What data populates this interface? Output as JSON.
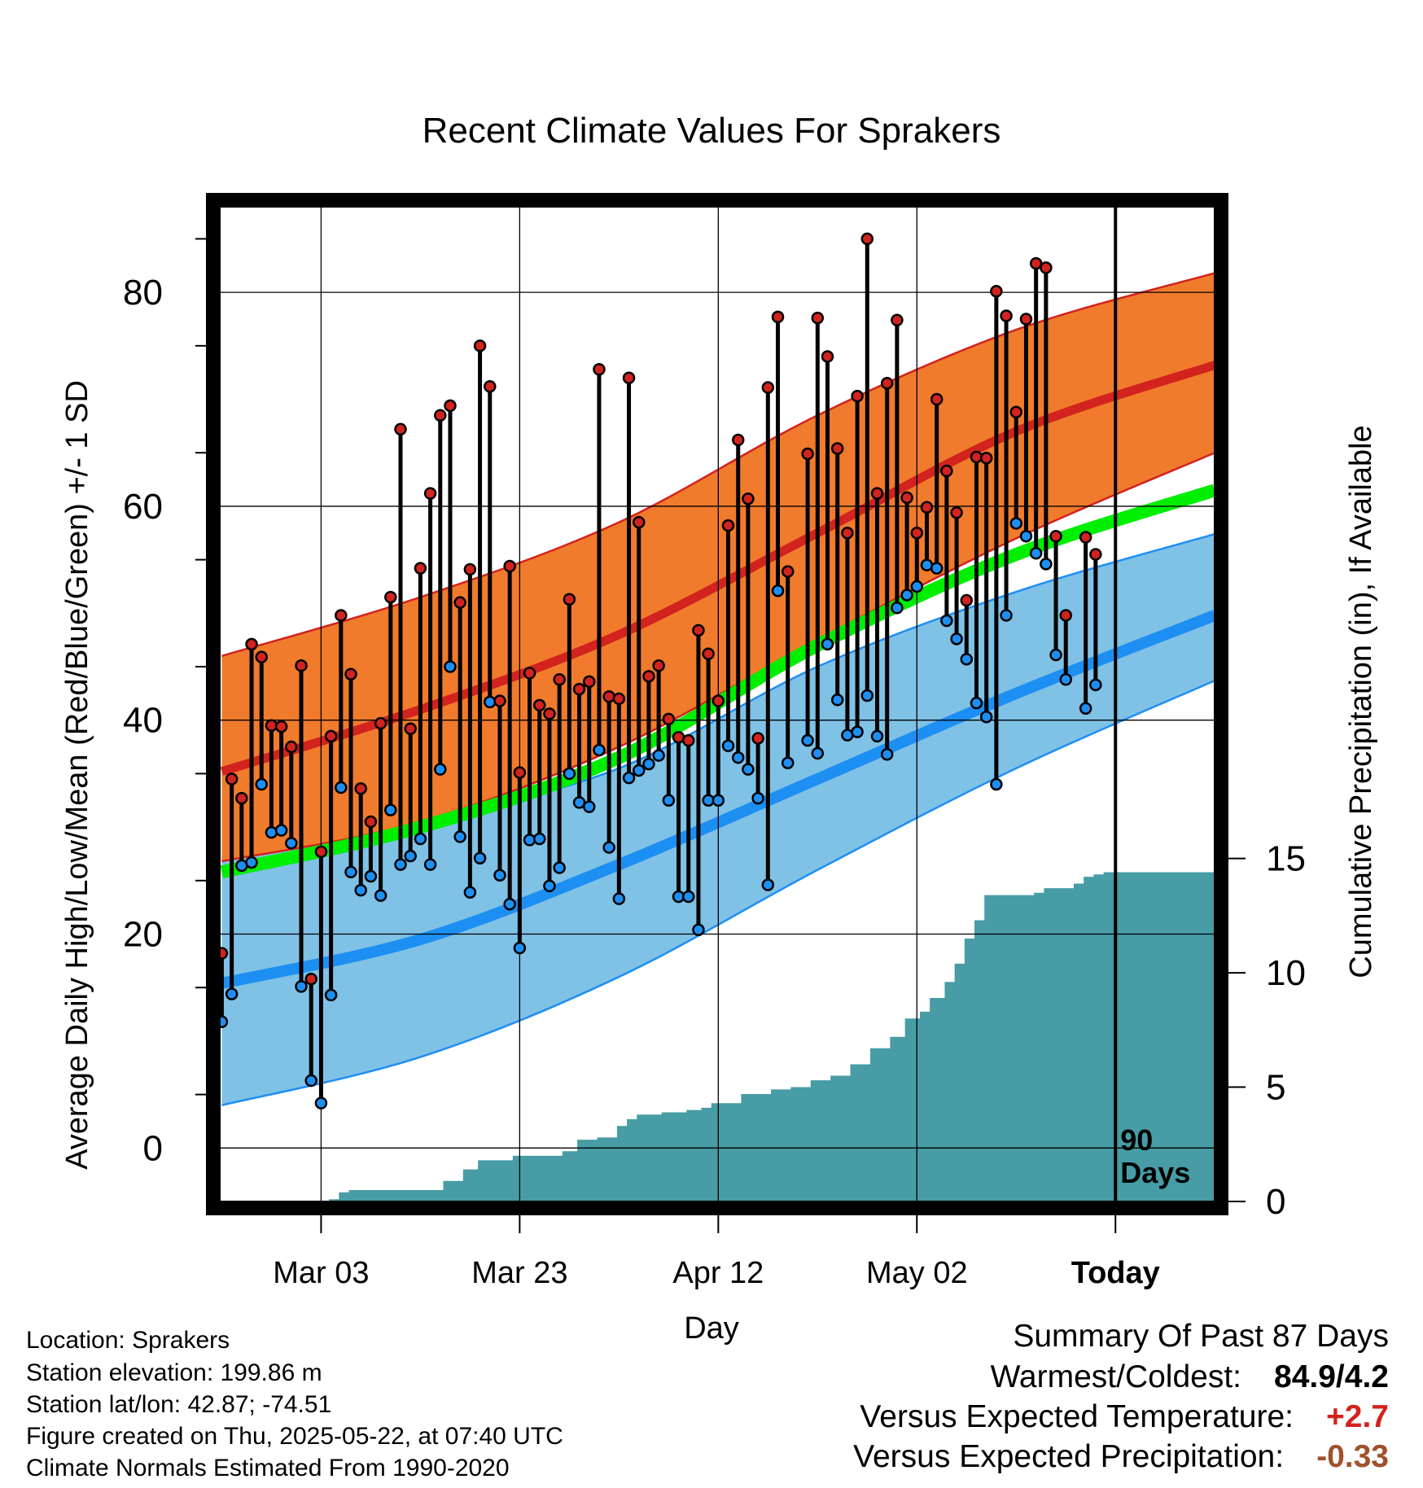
{
  "colors": {
    "high_band": "#f07b2c",
    "high_mean": "#d2231e",
    "low_band": "#80c1e6",
    "low_mean": "#1e8ff2",
    "normal_mean": "#00ee00",
    "precip": "#479ca5",
    "high_dot": "#d2231e",
    "low_dot": "#1e8ff2",
    "positive_value": "#d2231e",
    "precip_value": "#a0522d"
  },
  "chart_data": {
    "type": "line",
    "title": "Recent Climate Values For Sprakers",
    "xlabel": "Day",
    "ylabel": "Average Daily High/Low/Mean (Red/Blue/Green) +/- 1 SD",
    "y2label": "Cumulative Precipitation (in), If Available",
    "ylim": [
      -5,
      88
    ],
    "y2lim": [
      0,
      43.5
    ],
    "yticks": [
      0,
      20,
      40,
      60,
      80
    ],
    "y2ticks": [
      0,
      5,
      10,
      15
    ],
    "xticks": [
      {
        "day": 10,
        "label": "Mar 03"
      },
      {
        "day": 30,
        "label": "Mar 23"
      },
      {
        "day": 50,
        "label": "Apr 12"
      },
      {
        "day": 70,
        "label": "May 02"
      },
      {
        "day": 90,
        "label": "Today"
      }
    ],
    "x_axis": "days since Feb 21",
    "xlim": [
      -0.2,
      99.9
    ],
    "today_marker": {
      "day": 90,
      "label": [
        "90",
        "Days"
      ]
    },
    "grid": true,
    "normals": {
      "days": [
        0,
        20,
        40,
        60,
        80,
        100
      ],
      "high_mean": [
        35.2,
        41,
        48,
        57.5,
        67,
        73.2
      ],
      "high_upper": [
        46,
        51.5,
        58.5,
        68.5,
        76.5,
        81.8
      ],
      "high_lower": [
        26.8,
        30.5,
        37.5,
        47.5,
        57,
        65
      ],
      "mean_normal": [
        25.8,
        30,
        36.5,
        47,
        55.5,
        61.5
      ],
      "low_mean": [
        15.4,
        19.5,
        26.5,
        34.5,
        42.5,
        49.8
      ],
      "low_upper": [
        27,
        30.5,
        35.5,
        45,
        52,
        57.4
      ],
      "low_lower": [
        4,
        8.5,
        16,
        26,
        35.5,
        43.7
      ]
    },
    "daily": {
      "days": [
        0,
        1,
        2,
        3,
        4,
        5,
        6,
        7,
        8,
        9,
        10,
        11,
        12,
        13,
        14,
        15,
        16,
        17,
        18,
        19,
        20,
        21,
        22,
        23,
        24,
        25,
        26,
        27,
        28,
        29,
        30,
        31,
        32,
        33,
        34,
        35,
        36,
        37,
        38,
        39,
        40,
        41,
        42,
        43,
        44,
        45,
        46,
        47,
        48,
        49,
        50,
        51,
        52,
        53,
        54,
        55,
        56,
        57,
        58,
        59,
        60,
        61,
        62,
        63,
        64,
        65,
        66,
        67,
        68,
        69,
        70,
        71,
        72,
        73,
        74,
        75,
        76,
        77,
        78,
        79,
        80,
        81,
        82,
        83,
        84,
        85,
        86,
        87,
        88,
        89
      ],
      "high": [
        18.2,
        34.5,
        32.7,
        47.1,
        45.9,
        39.5,
        39.4,
        37.5,
        45.1,
        15.8,
        27.7,
        38.5,
        49.8,
        44.3,
        33.6,
        30.5,
        39.7,
        51.5,
        67.2,
        39.2,
        54.2,
        61.2,
        68.5,
        69.4,
        51,
        54.1,
        75,
        71.2,
        41.8,
        54.4,
        35.1,
        44.4,
        41.4,
        40.6,
        43.8,
        51.3,
        42.9,
        43.6,
        72.8,
        42.2,
        42,
        72,
        58.5,
        44.1,
        45.1,
        40.1,
        38.4,
        38.1,
        48.4,
        46.2,
        41.8,
        58.2,
        66.2,
        60.7,
        38.3,
        71.1,
        77.7,
        53.9,
        null,
        64.9,
        77.6,
        74,
        65.4,
        57.5,
        70.3,
        85,
        61.2,
        71.5,
        77.4,
        60.8,
        57.5,
        59.9,
        70,
        63.3,
        59.4,
        51.2,
        64.6,
        64.5,
        80.1,
        77.8,
        68.8,
        77.5,
        82.7,
        82.3,
        57.2,
        49.8,
        null,
        57.1,
        55.5,
        null
      ],
      "low": [
        11.8,
        14.4,
        26.4,
        26.7,
        34,
        29.5,
        29.7,
        28.5,
        15.1,
        6.3,
        4.2,
        14.3,
        33.7,
        25.8,
        24.1,
        25.4,
        23.6,
        31.6,
        26.5,
        27.3,
        28.9,
        26.5,
        35.4,
        45,
        29.1,
        23.9,
        27.1,
        41.7,
        25.5,
        22.8,
        18.7,
        28.8,
        28.9,
        24.5,
        26.2,
        35,
        32.3,
        31.9,
        37.2,
        28.1,
        23.3,
        34.6,
        35.3,
        35.9,
        36.7,
        32.5,
        23.5,
        23.5,
        20.4,
        32.5,
        32.5,
        37.6,
        36.5,
        35.4,
        32.7,
        24.6,
        52.1,
        36,
        null,
        38.1,
        36.9,
        47.1,
        41.9,
        38.6,
        38.9,
        42.3,
        38.5,
        36.8,
        50.5,
        51.7,
        52.5,
        54.5,
        54.2,
        49.3,
        47.6,
        45.7,
        41.6,
        40.3,
        34,
        49.8,
        58.4,
        57.2,
        55.6,
        54.6,
        46.1,
        43.8,
        null,
        41.1,
        43.3,
        null
      ]
    },
    "precip": {
      "days": [
        10.8,
        11.8,
        12.8,
        22.3,
        24.3,
        25.8,
        29.3,
        34.3,
        35.8,
        37.8,
        39.8,
        40.8,
        41.8,
        44.3,
        46.8,
        48.3,
        49.3,
        52.3,
        55.3,
        57.3,
        59.3,
        61.3,
        63.3,
        65.3,
        67.3,
        68.8,
        70.3,
        71.3,
        72.8,
        73.8,
        74.8,
        75.8,
        76.8,
        81.8,
        82.8,
        85.8,
        86.8,
        87.8,
        88.8,
        99.9
      ],
      "values": [
        0.1,
        0.4,
        0.5,
        0.9,
        1.4,
        1.8,
        2.0,
        2.2,
        2.7,
        2.8,
        3.3,
        3.6,
        3.8,
        3.9,
        4.0,
        4.1,
        4.3,
        4.7,
        4.9,
        5.0,
        5.3,
        5.5,
        6.0,
        6.7,
        7.2,
        8.0,
        8.3,
        8.9,
        9.6,
        10.4,
        11.5,
        12.3,
        13.4,
        13.5,
        13.7,
        13.9,
        14.2,
        14.3,
        14.4,
        14.4
      ]
    }
  },
  "info": {
    "location": "Location: Sprakers",
    "elevation": "Station elevation: 199.86 m",
    "latlon": "Station lat/lon: 42.87; -74.51",
    "created": "Figure created on Thu, 2025-05-22, at 07:40 UTC",
    "normals": "Climate Normals Estimated From 1990-2020"
  },
  "summary": {
    "title": "Summary Of Past 87 Days",
    "warmest_label": "Warmest/Coldest:",
    "warmest_value": "84.9/4.2",
    "temp_label": "Versus Expected Temperature:",
    "temp_value": "+2.7",
    "precip_label": "Versus Expected Precipitation:",
    "precip_value": "-0.33"
  }
}
